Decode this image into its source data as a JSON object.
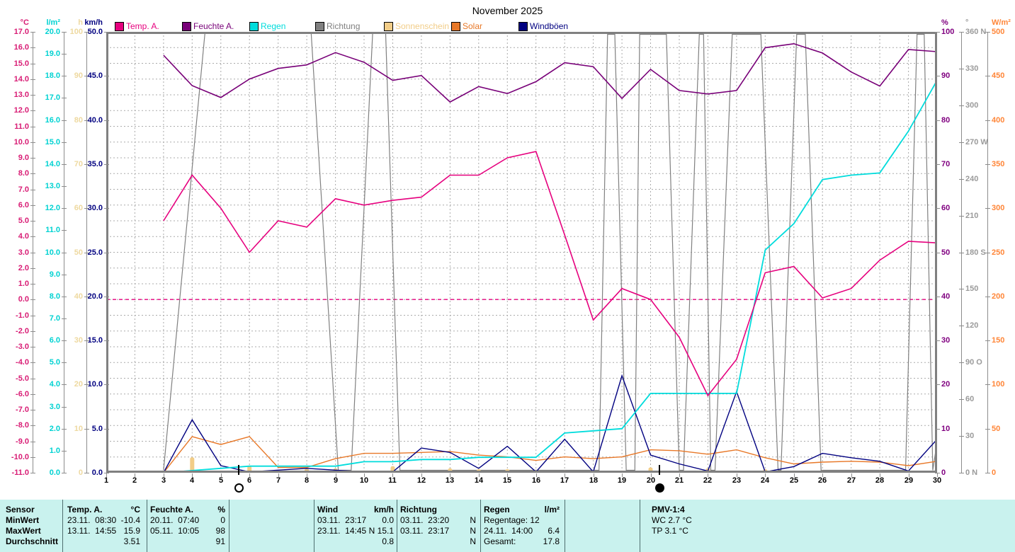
{
  "title": "November 2025",
  "legend": {
    "items": [
      {
        "label": "Temp. A.",
        "color": "#e6007e"
      },
      {
        "label": "Feuchte A.",
        "color": "#780078"
      },
      {
        "label": "Regen",
        "color": "#00dcdc"
      },
      {
        "label": "Richtung",
        "color": "#808080"
      },
      {
        "label": "Sonnenschein",
        "color": "#f2cd88"
      },
      {
        "label": "Solar",
        "color": "#e87828"
      },
      {
        "label": "Windböen",
        "color": "#000080"
      }
    ]
  },
  "axes": {
    "left": [
      {
        "unit": "°C",
        "color": "#d81b74",
        "min": -11,
        "max": 17,
        "step": 1,
        "decimals": 1
      },
      {
        "unit": "l/m²",
        "color": "#00d2d2",
        "min": 0,
        "max": 20,
        "step": 1,
        "decimals": 1
      },
      {
        "unit": "h",
        "color": "#eed9a0",
        "min": 0,
        "max": 100,
        "step": 10,
        "decimals": 0
      },
      {
        "unit": "km/h",
        "color": "#000080",
        "min": 0,
        "max": 50,
        "step": 5,
        "decimals": 1
      }
    ],
    "right": [
      {
        "unit": "%",
        "color": "#800080",
        "min": 0,
        "max": 100,
        "step": 10,
        "decimals": 0
      },
      {
        "unit": "°",
        "color": "#9a9a9a",
        "min": 0,
        "max": 360,
        "step": 30,
        "decimals": 0,
        "suffix": {
          "360": "N",
          "270": "W",
          "180": "S",
          "90": "O",
          "0": "N"
        }
      },
      {
        "unit": "W/m²",
        "color": "#ff8638",
        "min": 0,
        "max": 500,
        "step": 50,
        "decimals": 0
      }
    ]
  },
  "chart_data": {
    "type": "line",
    "title": "November 2025",
    "x_range": [
      1,
      30
    ],
    "grid": true,
    "x_days": [
      3,
      4,
      5,
      6,
      7,
      8,
      9,
      10,
      11,
      12,
      13,
      14,
      15,
      16,
      17,
      18,
      19,
      20,
      21,
      22,
      23,
      24,
      25,
      26,
      27,
      28,
      29,
      30
    ],
    "series": [
      {
        "name": "Feuchte A.",
        "unit": "%",
        "color": "#780078",
        "axis_min": 0,
        "axis_max": 100,
        "width": 1.6,
        "values": [
          94.7,
          87.8,
          85.1,
          89.3,
          91.7,
          92.5,
          95.3,
          93.1,
          89.0,
          90.1,
          84.1,
          87.6,
          86.0,
          88.7,
          93.0,
          92.1,
          84.9,
          91.5,
          86.7,
          85.9,
          86.7,
          96.4,
          97.3,
          95.2,
          90.9,
          87.7,
          96.0,
          95.5
        ]
      },
      {
        "name": "Temp. A.",
        "unit": "°C",
        "color": "#e6007e",
        "axis_min": -11,
        "axis_max": 17,
        "width": 1.6,
        "values": [
          5.0,
          7.9,
          5.8,
          3.0,
          5.0,
          4.6,
          6.4,
          6.0,
          6.3,
          6.5,
          7.9,
          7.9,
          9.0,
          9.4,
          4.1,
          -1.3,
          0.7,
          0.0,
          -2.4,
          -6.1,
          -3.8,
          1.7,
          2.1,
          0.1,
          0.7,
          2.5,
          3.7,
          3.6
        ]
      },
      {
        "name": "Regen",
        "unit": "l/m²",
        "color": "#00dcdc",
        "axis_min": 0,
        "axis_max": 20,
        "width": 1.8,
        "values": [
          0.0,
          0.1,
          0.2,
          0.3,
          0.3,
          0.3,
          0.3,
          0.5,
          0.5,
          0.6,
          0.6,
          0.7,
          0.7,
          0.7,
          1.8,
          1.9,
          2.0,
          3.6,
          3.6,
          3.6,
          3.6,
          10.1,
          11.3,
          13.3,
          13.5,
          13.6,
          15.5,
          17.8
        ]
      },
      {
        "name": "Solar",
        "unit": "W/m²",
        "color": "#e87828",
        "axis_min": 0,
        "axis_max": 500,
        "width": 1.4,
        "values": [
          0,
          41,
          32,
          41,
          6,
          6,
          16,
          22,
          22,
          23,
          24,
          20,
          18,
          14,
          18,
          16,
          18,
          26,
          25,
          21,
          26,
          17,
          10,
          12,
          13,
          12,
          8,
          13
        ]
      },
      {
        "name": "Windböen",
        "unit": "km/h",
        "color": "#000080",
        "axis_min": 0,
        "axis_max": 50,
        "width": 1.4,
        "values": [
          0.0,
          6.0,
          0.8,
          0.1,
          0.3,
          0.5,
          0.3,
          0.1,
          0.1,
          2.8,
          2.3,
          0.5,
          3.0,
          0.1,
          3.8,
          0.1,
          11.0,
          2.0,
          1.0,
          0.2,
          9.2,
          0.1,
          0.7,
          2.2,
          1.7,
          1.3,
          0.2,
          3.8
        ]
      }
    ],
    "richtung_track": {
      "name": "Richtung",
      "unit": "°",
      "color": "#808080",
      "axis_min": 0,
      "axis_max": 360,
      "width": 1.2,
      "points": [
        [
          3,
          2
        ],
        [
          4.45,
          360
        ],
        [
          8.15,
          360
        ],
        [
          9.1,
          2
        ],
        [
          9.55,
          2
        ],
        [
          10.3,
          360
        ],
        [
          10.75,
          360
        ],
        [
          11.25,
          2
        ],
        [
          18.2,
          2
        ],
        [
          18.5,
          358
        ],
        [
          18.75,
          358
        ],
        [
          19.15,
          2
        ],
        [
          19.45,
          2
        ],
        [
          19.62,
          358
        ],
        [
          20.55,
          358
        ],
        [
          21.0,
          2
        ],
        [
          21.15,
          2
        ],
        [
          21.7,
          358
        ],
        [
          21.85,
          358
        ],
        [
          22.1,
          2
        ],
        [
          22.25,
          2
        ],
        [
          22.85,
          358
        ],
        [
          23.85,
          358
        ],
        [
          24.45,
          2
        ],
        [
          24.55,
          2
        ],
        [
          25.1,
          358
        ],
        [
          25.4,
          358
        ],
        [
          25.95,
          2
        ],
        [
          28.9,
          2
        ],
        [
          29.3,
          358
        ],
        [
          29.55,
          358
        ],
        [
          29.85,
          2
        ],
        [
          30,
          25
        ]
      ]
    },
    "sonnenschein": {
      "name": "Sonnenschein",
      "unit": "h",
      "color": "#f2cd88",
      "axis_min": 0,
      "axis_max": 100,
      "values": [
        0,
        3.5,
        0.5,
        1.5,
        0.5,
        1.0,
        1.0,
        0.5,
        1.5,
        0.5,
        1.0,
        0.8,
        0.8,
        0.5,
        0.5,
        0.3,
        0.5,
        1.2,
        0.5,
        1.0,
        0.3,
        0.8,
        0.5,
        0.5,
        0.5,
        0.5,
        0.5,
        0.5
      ]
    },
    "freezing_line": {
      "series": "Temp. A.",
      "value": 0,
      "color": "#e6007e"
    },
    "moon_phases": [
      {
        "phase": "full-moon",
        "symbol": "○",
        "day": 5.62
      },
      {
        "phase": "new-moon",
        "symbol": "●",
        "day": 20.31
      }
    ]
  },
  "stats_table": {
    "row_labels": [
      "Sensor",
      "MinWert",
      "MaxWert",
      "Durchschnitt"
    ],
    "columns": [
      {
        "header": "Temp. A.",
        "unit": "°C",
        "rows": [
          [
            "23.11.  08:30",
            "-10.4"
          ],
          [
            "13.11.  14:55",
            "15.9"
          ],
          [
            "",
            "3.51"
          ]
        ]
      },
      {
        "header": "Feuchte A.",
        "unit": "%",
        "rows": [
          [
            "20.11.  07:40",
            "0"
          ],
          [
            "05.11.  10:05",
            "98"
          ],
          [
            "",
            "91"
          ]
        ]
      },
      {
        "header": "Wind",
        "unit": "km/h",
        "rows": [
          [
            "03.11.  23:17",
            "0.0"
          ],
          [
            "23.11.  14:45",
            "N 15.1"
          ],
          [
            "",
            "0.8"
          ]
        ]
      },
      {
        "header": "Richtung",
        "unit": "",
        "rows": [
          [
            "03.11.  23:20",
            "N"
          ],
          [
            "03.11.  23:17",
            "N"
          ],
          [
            "",
            "N"
          ]
        ]
      },
      {
        "header": "Regen",
        "unit": "l/m²",
        "rows": [
          [
            "Regentage: 12",
            ""
          ],
          [
            "24.11.  14:00",
            "6.4"
          ],
          [
            "Gesamt:",
            "17.8"
          ]
        ]
      },
      {
        "header": "PMV-1:4",
        "unit": "",
        "rows": [
          [
            "WC 2.7 °C",
            ""
          ],
          [
            "TP 3.1 °C",
            ""
          ],
          [
            "",
            ""
          ]
        ]
      }
    ]
  }
}
